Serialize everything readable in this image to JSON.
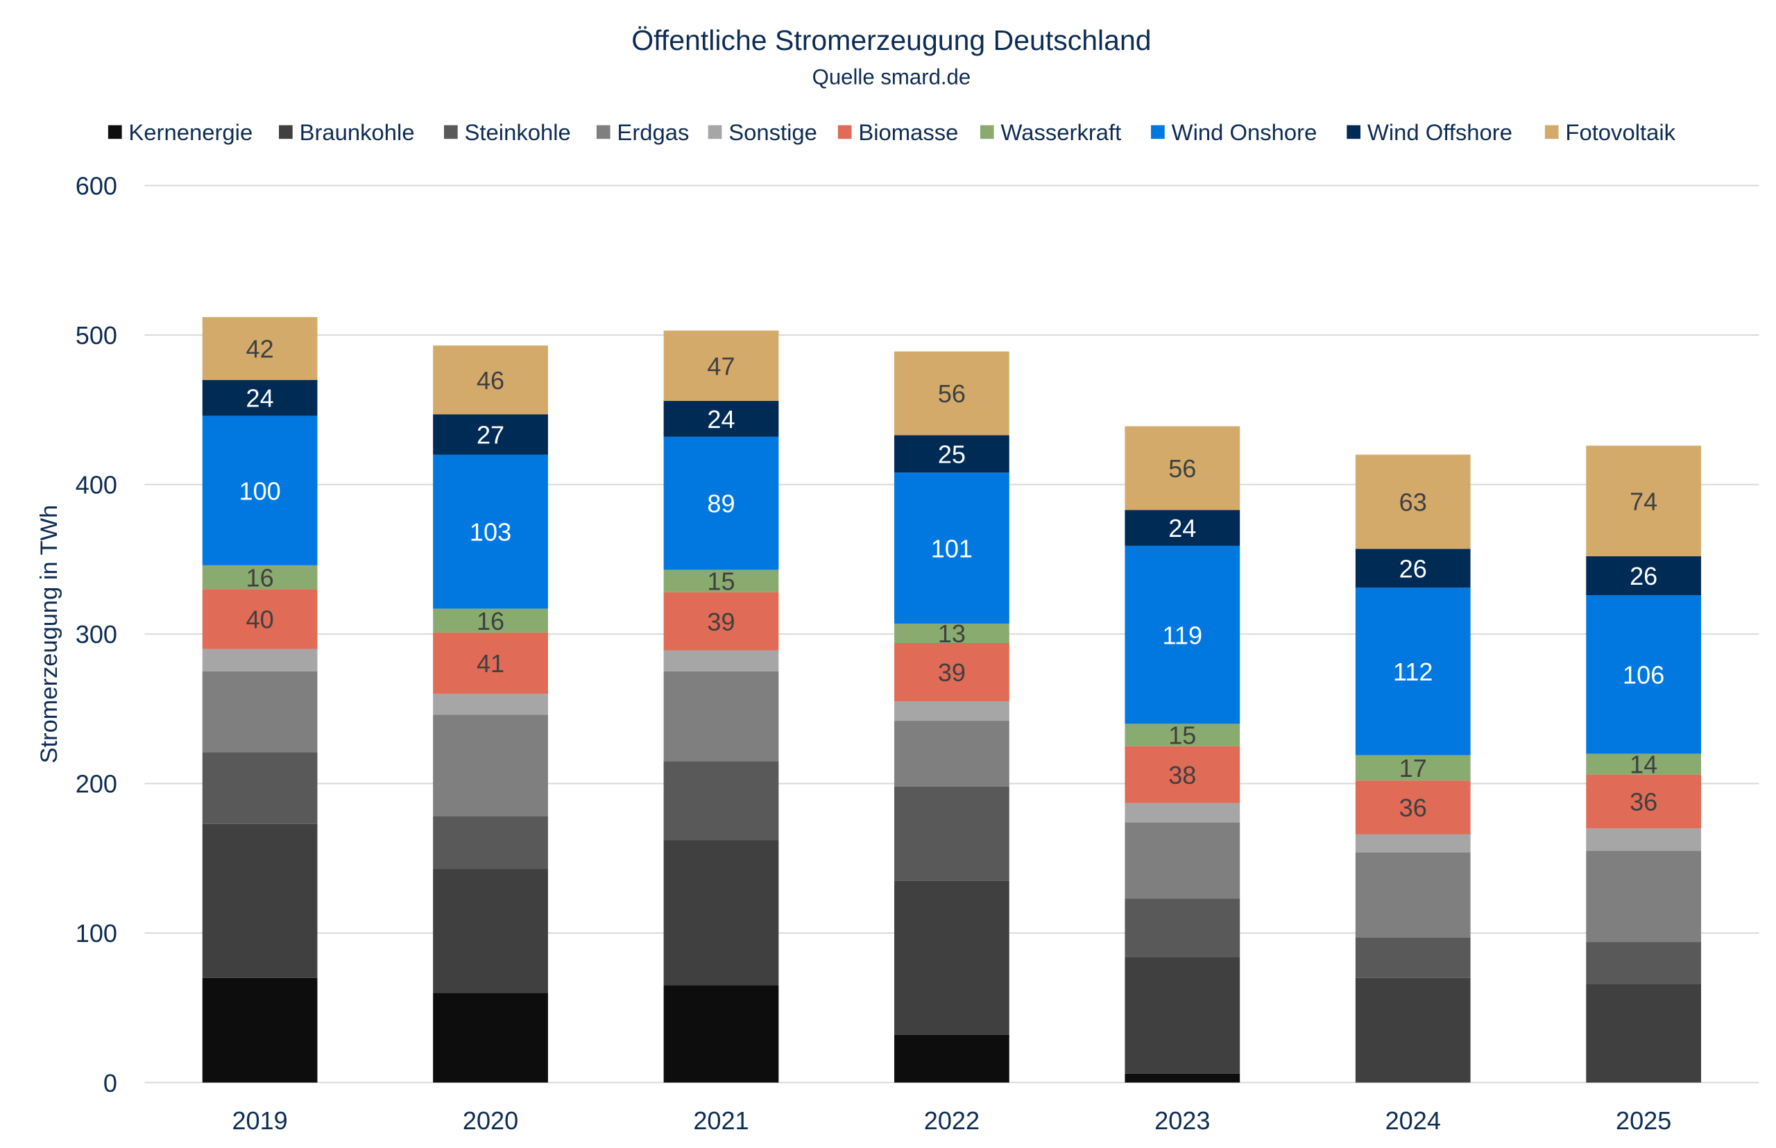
{
  "chart_data": {
    "type": "bar",
    "stacked": true,
    "title": "Öffentliche Stromerzeugung Deutschland",
    "subtitle": "Quelle smard.de",
    "xlabel": "",
    "ylabel": "Stromerzeugung in TWh",
    "ylim": [
      0,
      600
    ],
    "yticks": [
      0,
      100,
      200,
      300,
      400,
      500,
      600
    ],
    "grid": true,
    "legend_position": "top",
    "categories": [
      "2019",
      "2020",
      "2021",
      "2022",
      "2023",
      "2024",
      "2025"
    ],
    "series": [
      {
        "name": "Kernenergie",
        "color": "#0d0d0d",
        "values": [
          70,
          60,
          65,
          32,
          6,
          0,
          0
        ],
        "labels_shown": false
      },
      {
        "name": "Braunkohle",
        "color": "#404040",
        "values": [
          103,
          83,
          97,
          103,
          78,
          70,
          66
        ],
        "labels_shown": false
      },
      {
        "name": "Steinkohle",
        "color": "#595959",
        "values": [
          48,
          35,
          53,
          63,
          39,
          27,
          28
        ],
        "labels_shown": false
      },
      {
        "name": "Erdgas",
        "color": "#7f7f7f",
        "values": [
          54,
          68,
          60,
          44,
          51,
          57,
          61
        ],
        "labels_shown": false
      },
      {
        "name": "Sonstige",
        "color": "#a6a6a6",
        "values": [
          15,
          14,
          14,
          13,
          13,
          12,
          15
        ],
        "labels_shown": false
      },
      {
        "name": "Biomasse",
        "color": "#e06b56",
        "values": [
          40,
          41,
          39,
          39,
          38,
          36,
          36
        ],
        "labels_shown": true,
        "label_color": "#404040"
      },
      {
        "name": "Wasserkraft",
        "color": "#8aab6f",
        "values": [
          16,
          16,
          15,
          13,
          15,
          17,
          14
        ],
        "labels_shown": true,
        "label_color": "#404040"
      },
      {
        "name": "Wind Onshore",
        "color": "#0078e0",
        "values": [
          100,
          103,
          89,
          101,
          119,
          112,
          106
        ],
        "labels_shown": true,
        "label_color": "#ffffff"
      },
      {
        "name": "Wind Offshore",
        "color": "#002b55",
        "values": [
          24,
          27,
          24,
          25,
          24,
          26,
          26
        ],
        "labels_shown": true,
        "label_color": "#ffffff"
      },
      {
        "name": "Fotovoltaik",
        "color": "#d4aa6b",
        "values": [
          42,
          46,
          47,
          56,
          56,
          63,
          74
        ],
        "labels_shown": true,
        "label_color": "#404040"
      }
    ]
  }
}
